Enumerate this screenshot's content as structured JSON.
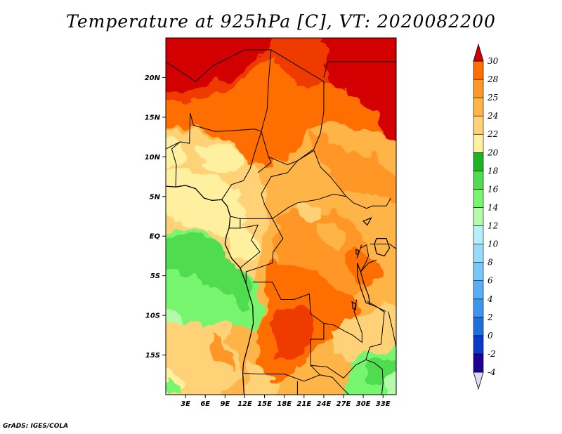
{
  "title": "Temperature at 925hPa [C], VT: 2020082200",
  "footer": "GrADS: IGES/COLA",
  "map": {
    "lon_range": [
      0,
      35
    ],
    "lat_range": [
      -20,
      25
    ],
    "lon_ticks": [
      {
        "value": 3,
        "label": "3E"
      },
      {
        "value": 6,
        "label": "6E"
      },
      {
        "value": 9,
        "label": "9E"
      },
      {
        "value": 12,
        "label": "12E"
      },
      {
        "value": 15,
        "label": "15E"
      },
      {
        "value": 18,
        "label": "18E"
      },
      {
        "value": 21,
        "label": "21E"
      },
      {
        "value": 24,
        "label": "24E"
      },
      {
        "value": 27,
        "label": "27E"
      },
      {
        "value": 30,
        "label": "30E"
      },
      {
        "value": 33,
        "label": "33E"
      }
    ],
    "lat_ticks": [
      {
        "value": 20,
        "label": "20N"
      },
      {
        "value": 15,
        "label": "15N"
      },
      {
        "value": 10,
        "label": "10N"
      },
      {
        "value": 5,
        "label": "5N"
      },
      {
        "value": 0,
        "label": "EQ"
      },
      {
        "value": -5,
        "label": "5S"
      },
      {
        "value": -10,
        "label": "10S"
      },
      {
        "value": -15,
        "label": "15S"
      }
    ],
    "coastline": [
      [
        0,
        6.3
      ],
      [
        1.5,
        6.2
      ],
      [
        3,
        6.4
      ],
      [
        4.5,
        6.0
      ],
      [
        5.8,
        4.8
      ],
      [
        7,
        4.5
      ],
      [
        8.5,
        4.6
      ],
      [
        9.3,
        3.8
      ],
      [
        9.8,
        2.5
      ],
      [
        9.6,
        1.0
      ],
      [
        9.2,
        0
      ],
      [
        9.0,
        -1
      ],
      [
        10,
        -2.8
      ],
      [
        11.3,
        -4
      ],
      [
        12.2,
        -6
      ],
      [
        13.2,
        -8.8
      ],
      [
        13.3,
        -11
      ],
      [
        12.6,
        -13.5
      ],
      [
        11.8,
        -16
      ],
      [
        11.7,
        -17.3
      ],
      [
        11.9,
        -20
      ]
    ],
    "lakes": [
      [
        [
          29.1,
          -3.4
        ],
        [
          29.6,
          -4.5
        ],
        [
          30.1,
          -6.0
        ],
        [
          30.8,
          -7.5
        ],
        [
          31.0,
          -8.6
        ],
        [
          30.4,
          -8.4
        ],
        [
          29.7,
          -6.8
        ],
        [
          29.1,
          -5.0
        ],
        [
          29.1,
          -3.4
        ]
      ],
      [
        [
          32.0,
          -0.3
        ],
        [
          33.5,
          -0.3
        ],
        [
          34.0,
          -1.5
        ],
        [
          33.2,
          -2.5
        ],
        [
          32.0,
          -2.2
        ],
        [
          31.7,
          -1.0
        ],
        [
          32.0,
          -0.3
        ]
      ],
      [
        [
          28.9,
          -1.7
        ],
        [
          29.3,
          -1.8
        ],
        [
          29.2,
          -2.4
        ],
        [
          28.9,
          -2.2
        ],
        [
          28.9,
          -1.7
        ]
      ],
      [
        [
          30.0,
          1.9
        ],
        [
          31.2,
          2.3
        ],
        [
          30.6,
          1.4
        ],
        [
          30.0,
          1.9
        ]
      ],
      [
        [
          28.3,
          -8.3
        ],
        [
          28.9,
          -8.6
        ],
        [
          28.8,
          -9.3
        ],
        [
          28.4,
          -9.1
        ],
        [
          28.3,
          -8.3
        ]
      ]
    ],
    "borders": [
      [
        [
          0,
          22.0
        ],
        [
          4.5,
          19.5
        ],
        [
          7.2,
          21.5
        ],
        [
          12,
          23.5
        ],
        [
          16,
          23.5
        ],
        [
          24,
          19.5
        ],
        [
          24,
          15.7
        ]
      ],
      [
        [
          24,
          20.0
        ],
        [
          24.6,
          22.0
        ],
        [
          35,
          22.0
        ]
      ],
      [
        [
          3.7,
          15.5
        ],
        [
          4.2,
          14.0
        ],
        [
          7.5,
          13.2
        ],
        [
          10,
          13.3
        ],
        [
          13.5,
          13.5
        ],
        [
          14.5,
          13.2
        ],
        [
          15.6,
          10.0
        ],
        [
          16.0,
          9.3
        ],
        [
          14.0,
          8.0
        ]
      ],
      [
        [
          14.5,
          13.2
        ],
        [
          15.4,
          16.0
        ],
        [
          15.6,
          19.5
        ],
        [
          16,
          23.5
        ]
      ],
      [
        [
          15.6,
          10.0
        ],
        [
          18.5,
          9.0
        ],
        [
          20.0,
          9.5
        ],
        [
          22.5,
          11.0
        ],
        [
          23.5,
          13.0
        ],
        [
          24,
          15.7
        ]
      ],
      [
        [
          14.5,
          13.2
        ],
        [
          13.5,
          10.5
        ],
        [
          12.8,
          8.5
        ],
        [
          11.8,
          7.0
        ],
        [
          10,
          6.5
        ],
        [
          8.5,
          4.6
        ]
      ],
      [
        [
          1.5,
          6.2
        ],
        [
          1.6,
          9.0
        ],
        [
          0.9,
          11.0
        ],
        [
          2.2,
          11.9
        ],
        [
          3.6,
          11.7
        ],
        [
          3.7,
          15.5
        ]
      ],
      [
        [
          2.2,
          11.9
        ],
        [
          0,
          11.0
        ]
      ],
      [
        [
          14.5,
          5.3
        ],
        [
          16,
          7.5
        ],
        [
          18.5,
          8.0
        ],
        [
          20.0,
          9.5
        ],
        [
          22.5,
          10.8
        ],
        [
          23.5,
          8.7
        ],
        [
          25.0,
          7.5
        ],
        [
          27.4,
          5.0
        ],
        [
          25.5,
          5.3
        ],
        [
          23.0,
          4.6
        ],
        [
          20.0,
          4.2
        ],
        [
          18.6,
          3.6
        ],
        [
          16.2,
          2.2
        ],
        [
          15.0,
          4.0
        ],
        [
          14.5,
          5.3
        ]
      ],
      [
        [
          27.4,
          5.0
        ],
        [
          28.5,
          4.2
        ],
        [
          30.5,
          3.5
        ],
        [
          31.4,
          3.8
        ],
        [
          33.5,
          3.8
        ],
        [
          34.2,
          4.8
        ]
      ],
      [
        [
          9.8,
          2.5
        ],
        [
          11.3,
          2.2
        ],
        [
          13.3,
          2.2
        ],
        [
          16.2,
          2.2
        ]
      ],
      [
        [
          11.3,
          2.2
        ],
        [
          11.3,
          1.0
        ],
        [
          9.6,
          1.0
        ]
      ],
      [
        [
          11.3,
          1.0
        ],
        [
          14.0,
          1.4
        ],
        [
          13.0,
          -0.5
        ],
        [
          14.3,
          -2.0
        ],
        [
          11.3,
          -4.0
        ]
      ],
      [
        [
          16.2,
          2.2
        ],
        [
          17.8,
          -0.3
        ],
        [
          16.3,
          -2.0
        ],
        [
          16.2,
          -3.4
        ],
        [
          12.2,
          -4.5
        ],
        [
          12.2,
          -6
        ]
      ],
      [
        [
          13.2,
          -5.8
        ],
        [
          16.2,
          -5.8
        ],
        [
          17.5,
          -8.0
        ],
        [
          19.5,
          -8.0
        ],
        [
          21.8,
          -7.3
        ],
        [
          22.0,
          -9.8
        ],
        [
          24.0,
          -11.0
        ],
        [
          24.0,
          -13.0
        ],
        [
          22.0,
          -13.0
        ],
        [
          22.0,
          -16.3
        ],
        [
          23.4,
          -17.5
        ],
        [
          21.0,
          -18.3
        ],
        [
          18.0,
          -17.4
        ],
        [
          14.0,
          -17.4
        ],
        [
          11.8,
          -17.3
        ]
      ],
      [
        [
          24.0,
          -11.0
        ],
        [
          25.5,
          -11.2
        ],
        [
          27.2,
          -12.0
        ],
        [
          28.4,
          -12.5
        ],
        [
          29.8,
          -13.4
        ],
        [
          29.8,
          -12.2
        ],
        [
          28.6,
          -9.5
        ],
        [
          29.0,
          -8.0
        ]
      ],
      [
        [
          22.0,
          -16.3
        ],
        [
          24.5,
          -16.5
        ],
        [
          27.0,
          -17.9
        ],
        [
          28.8,
          -16.3
        ],
        [
          30.4,
          -15.6
        ],
        [
          31.0,
          -14.0
        ],
        [
          32.7,
          -13.6
        ],
        [
          33.2,
          -9.6
        ],
        [
          32.2,
          -9.0
        ],
        [
          30.6,
          -8.2
        ]
      ],
      [
        [
          30.4,
          -15.6
        ],
        [
          31.7,
          -16.0
        ],
        [
          32.9,
          -16.8
        ],
        [
          33.0,
          -18.5
        ],
        [
          32.8,
          -20
        ]
      ],
      [
        [
          20.0,
          -18.3
        ],
        [
          20.0,
          -20
        ]
      ],
      [
        [
          23.4,
          -17.5
        ],
        [
          25.3,
          -17.8
        ],
        [
          26.6,
          -19.0
        ],
        [
          27.8,
          -20
        ]
      ],
      [
        [
          29.6,
          -1.5
        ],
        [
          30.5,
          -1.1
        ],
        [
          30.8,
          -2.5
        ],
        [
          30.4,
          -3.3
        ],
        [
          29.6,
          -4.5
        ]
      ],
      [
        [
          29.0,
          -2.8
        ],
        [
          29.6,
          -1.5
        ],
        [
          29.7,
          -1.1
        ]
      ],
      [
        [
          31.0,
          -1.0
        ],
        [
          34.0,
          -1.0
        ],
        [
          35,
          -1.6
        ]
      ],
      [
        [
          30.8,
          -8.5
        ],
        [
          32.2,
          -9.0
        ],
        [
          33.4,
          -9.5
        ]
      ],
      [
        [
          33.8,
          -9.5
        ],
        [
          34.5,
          -12.0
        ],
        [
          35,
          -14.0
        ]
      ],
      [
        [
          29.6,
          -4.5
        ],
        [
          30.8,
          -3.4
        ],
        [
          32.0,
          -3.0
        ]
      ]
    ]
  },
  "colorbar": {
    "colors": [
      "#1e0096",
      "#0a3ac8",
      "#1e6edc",
      "#3c96f0",
      "#5aaef5",
      "#78c6fa",
      "#96dcfa",
      "#b4f0fa",
      "#b4faaa",
      "#78f56e",
      "#50dc50",
      "#1eb41e",
      "#fff0a0",
      "#ffd278",
      "#ffb446",
      "#ff9628",
      "#ff6e00",
      "#f03a00",
      "#d20000"
    ],
    "labels": [
      "-4",
      "-2",
      "0",
      "2",
      "4",
      "6",
      "8",
      "10",
      "12",
      "14",
      "16",
      "18",
      "20",
      "22",
      "24",
      "25",
      "28",
      "30"
    ]
  }
}
